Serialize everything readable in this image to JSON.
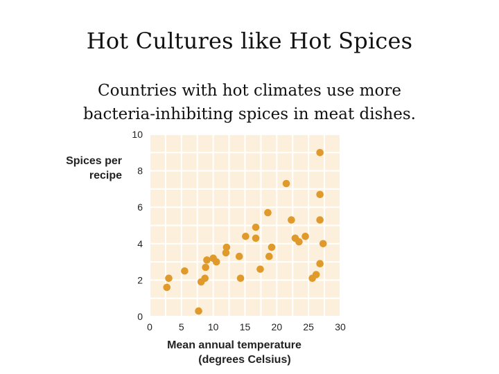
{
  "slide": {
    "title": "Hot Cultures like Hot Spices",
    "subtitle_lines": [
      "Countries with hot climates use more",
      "bacteria-inhibiting spices in meat dishes."
    ]
  },
  "chart_data": {
    "type": "scatter",
    "ylabel_lines": [
      "Spices per",
      "recipe"
    ],
    "xlabel_lines": [
      "Mean annual temperature",
      "(degrees Celsius)"
    ],
    "xlim": [
      0,
      30
    ],
    "ylim": [
      0,
      10
    ],
    "x_ticks": [
      "0",
      "5",
      "10",
      "15",
      "20",
      "25",
      "30"
    ],
    "y_ticks": [
      "0",
      "2",
      "4",
      "6",
      "8",
      "10"
    ],
    "grid": true,
    "colors": {
      "background": "#fcf0dc",
      "grid": "#ffffff",
      "point": "#e09a2b"
    },
    "points": [
      {
        "x": 2.7,
        "y": 1.6
      },
      {
        "x": 3.0,
        "y": 2.1
      },
      {
        "x": 5.5,
        "y": 2.5
      },
      {
        "x": 7.7,
        "y": 0.3
      },
      {
        "x": 8.1,
        "y": 1.9
      },
      {
        "x": 8.7,
        "y": 2.1
      },
      {
        "x": 8.8,
        "y": 2.7
      },
      {
        "x": 9.0,
        "y": 3.1
      },
      {
        "x": 10.0,
        "y": 3.2
      },
      {
        "x": 10.5,
        "y": 3.0
      },
      {
        "x": 12.0,
        "y": 3.5
      },
      {
        "x": 12.1,
        "y": 3.8
      },
      {
        "x": 14.3,
        "y": 2.1
      },
      {
        "x": 14.1,
        "y": 3.3
      },
      {
        "x": 15.1,
        "y": 4.4
      },
      {
        "x": 16.7,
        "y": 4.9
      },
      {
        "x": 16.7,
        "y": 4.3
      },
      {
        "x": 17.4,
        "y": 2.6
      },
      {
        "x": 18.6,
        "y": 5.7
      },
      {
        "x": 18.8,
        "y": 3.3
      },
      {
        "x": 19.2,
        "y": 3.8
      },
      {
        "x": 21.5,
        "y": 7.3
      },
      {
        "x": 22.3,
        "y": 5.3
      },
      {
        "x": 22.9,
        "y": 4.3
      },
      {
        "x": 23.5,
        "y": 4.1
      },
      {
        "x": 24.5,
        "y": 4.4
      },
      {
        "x": 25.6,
        "y": 2.1
      },
      {
        "x": 26.2,
        "y": 2.3
      },
      {
        "x": 26.8,
        "y": 9.0
      },
      {
        "x": 26.8,
        "y": 6.7
      },
      {
        "x": 26.8,
        "y": 5.3
      },
      {
        "x": 26.8,
        "y": 2.9
      },
      {
        "x": 27.3,
        "y": 4.0
      }
    ]
  }
}
